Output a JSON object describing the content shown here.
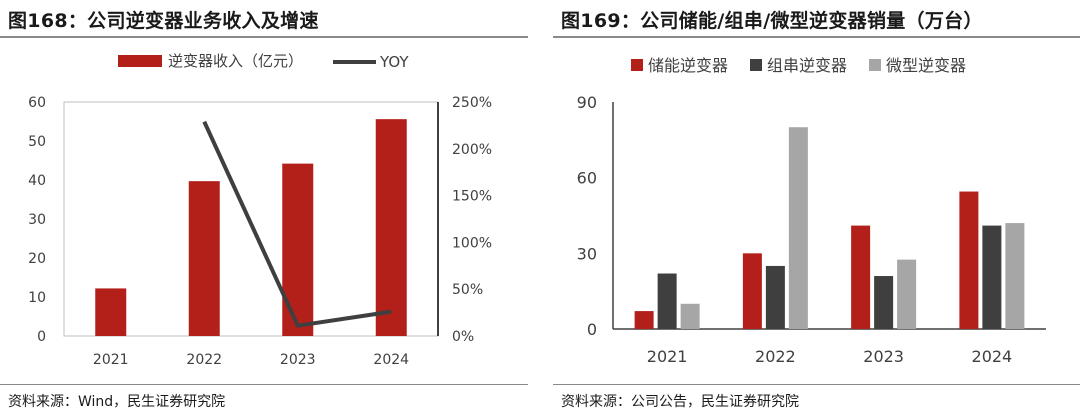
{
  "left": {
    "title": "图168：公司逆变器业务收入及增速",
    "source": "资料来源：Wind，民生证券研究院",
    "colors": {
      "bar": "#B22019",
      "line": "#3F3F3F"
    }
  },
  "right": {
    "title": "图169：公司储能/组串/微型逆变器销量（万台）",
    "source": "资料来源：公司公告，民生证券研究院",
    "colors": [
      "#B22019",
      "#3F3F3F",
      "#A6A6A6"
    ]
  },
  "chart_data": [
    {
      "type": "bar",
      "title": "图168：公司逆变器业务收入及增速",
      "categories": [
        "2021",
        "2022",
        "2023",
        "2024"
      ],
      "series": [
        {
          "name": "逆变器收入（亿元）",
          "type": "bar",
          "axis": "left",
          "values": [
            12.2,
            39.7,
            44.2,
            55.6
          ]
        },
        {
          "name": "YOY",
          "type": "line",
          "axis": "right",
          "values": [
            null,
            2.29,
            0.11,
            0.26
          ]
        }
      ],
      "y_ticks": [
        "0",
        "10",
        "20",
        "30",
        "40",
        "50",
        "60"
      ],
      "ylim": [
        0,
        60
      ],
      "y2_ticks": [
        "0%",
        "50%",
        "100%",
        "150%",
        "200%",
        "250%"
      ],
      "y2lim": [
        0,
        2.5
      ],
      "legend": "top"
    },
    {
      "type": "bar",
      "title": "图169：公司储能/组串/微型逆变器销量（万台）",
      "categories": [
        "2021",
        "2022",
        "2023",
        "2024"
      ],
      "series": [
        {
          "name": "储能逆变器",
          "values": [
            7.1,
            30,
            41,
            54.5
          ]
        },
        {
          "name": "组串逆变器",
          "values": [
            22,
            25,
            21,
            41
          ]
        },
        {
          "name": "微型逆变器",
          "values": [
            10,
            80,
            27.5,
            42
          ]
        }
      ],
      "y_ticks": [
        "0",
        "30",
        "60",
        "90"
      ],
      "ylim": [
        0,
        90
      ],
      "legend": "top"
    }
  ]
}
